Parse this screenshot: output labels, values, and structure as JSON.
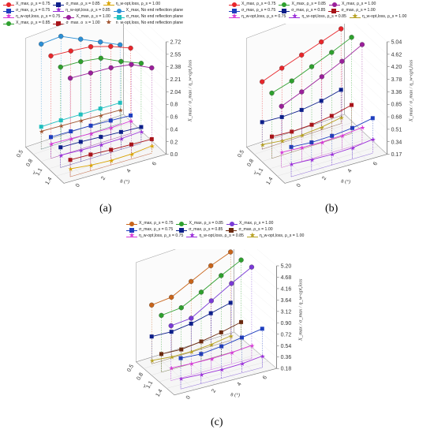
{
  "chart_data": [
    {
      "type": "scatter",
      "panel": "(a)",
      "zlabel": "X_max / σ_max / η_w-opt,loss",
      "xlabel": "λ",
      "ylabel": "θ (°)",
      "x_ticks": [
        "0.5",
        "0.8",
        "1.1",
        "1.4"
      ],
      "y_ticks": [
        "0",
        "2",
        "4",
        "6"
      ],
      "z_ticks": [
        "0.0",
        "0.2",
        "0.4",
        "0.6",
        "0.8",
        "2.04",
        "2.21",
        "2.38",
        "2.55",
        "2.72"
      ],
      "legend": [
        {
          "label": "X_max, ρ_s = 0.75",
          "color": "#e8262b",
          "marker": "dot"
        },
        {
          "label": "σ_max, ρ_s = 0.75",
          "color": "#1f3fbf",
          "marker": "square"
        },
        {
          "label": "η_w-opt,loss, ρ_s = 0.75",
          "color": "#d63ad6",
          "marker": "star"
        },
        {
          "label": "X_max, ρ_s = 0.85",
          "color": "#2ea02e",
          "marker": "dot"
        },
        {
          "label": "σ_max, ρ_s = 0.85",
          "color": "#0d1f8a",
          "marker": "square"
        },
        {
          "label": "η_w-opt,loss, ρ_s = 0.85",
          "color": "#9b30d9",
          "marker": "star"
        },
        {
          "label": "X_max, ρ_s = 1.00",
          "color": "#9b1f9b",
          "marker": "dot"
        },
        {
          "label": "σ_max, ρ_s = 1.00",
          "color": "#a8141a",
          "marker": "square"
        },
        {
          "label": "η_w-opt,loss, ρ_s = 1.00",
          "color": "#d9a300",
          "marker": "star"
        },
        {
          "label": "X_max, No end reflection plane",
          "color": "#2a8fd6",
          "marker": "dot"
        },
        {
          "label": "σ_max, No end reflection plane",
          "color": "#1fbfbf",
          "marker": "square"
        },
        {
          "label": "η_w-opt,loss, No end reflection plane",
          "color": "#a0522d",
          "marker": "star"
        }
      ],
      "series": [
        {
          "name": "X_max, No end reflection plane",
          "color": "#2a8fd6",
          "marker": "dot",
          "values": [
            2.78,
            2.8,
            2.66,
            2.52,
            2.38
          ]
        },
        {
          "name": "X_max, ρ_s = 0.75",
          "color": "#e8262b",
          "marker": "dot",
          "values": [
            2.74,
            2.72,
            2.69,
            2.6,
            2.48
          ]
        },
        {
          "name": "X_max, ρ_s = 0.85",
          "color": "#2ea02e",
          "marker": "dot",
          "values": [
            2.71,
            2.7,
            2.66,
            2.52,
            2.4
          ]
        },
        {
          "name": "X_max, ρ_s = 1.00",
          "color": "#9b1f9b",
          "marker": "dot",
          "values": [
            2.68,
            2.67,
            2.66,
            2.62,
            2.48
          ]
        },
        {
          "name": "σ_max, No end reflection plane",
          "color": "#1fbfbf",
          "marker": "square",
          "values": [
            0.4,
            0.4,
            0.39,
            0.38,
            0.37
          ]
        },
        {
          "name": "σ_max, ρ_s = 0.75",
          "color": "#1f3fbf",
          "marker": "square",
          "values": [
            0.38,
            0.37,
            0.36,
            0.34,
            0.32
          ]
        },
        {
          "name": "σ_max, ρ_s = 0.85",
          "color": "#0d1f8a",
          "marker": "square",
          "values": [
            0.36,
            0.35,
            0.33,
            0.31,
            0.29
          ]
        },
        {
          "name": "σ_max, ρ_s = 1.00",
          "color": "#a8141a",
          "marker": "square",
          "values": [
            0.3,
            0.29,
            0.27,
            0.26,
            0.25
          ]
        },
        {
          "name": "η_w-opt,loss, No end reflection plane",
          "color": "#a0522d",
          "marker": "star",
          "values": [
            0.32,
            0.3,
            0.28,
            0.26,
            0.24
          ]
        },
        {
          "name": "η_w-opt,loss, ρ_s = 0.75",
          "color": "#d63ad6",
          "marker": "star",
          "values": [
            0.26,
            0.24,
            0.22,
            0.21,
            0.22
          ]
        },
        {
          "name": "η_w-opt,loss, ρ_s = 0.85",
          "color": "#9b30d9",
          "marker": "star",
          "values": [
            0.22,
            0.2,
            0.19,
            0.19,
            0.21
          ]
        },
        {
          "name": "η_w-opt,loss, ρ_s = 1.00",
          "color": "#d9a300",
          "marker": "star",
          "values": [
            0.14,
            0.1,
            0.08,
            0.09,
            0.13
          ]
        }
      ]
    },
    {
      "type": "scatter",
      "panel": "(b)",
      "zlabel": "X_max / σ_max / η_w-opt,loss",
      "xlabel": "λ",
      "ylabel": "θ (°)",
      "x_ticks": [
        "0.5",
        "0.8",
        "1.1",
        "1.4"
      ],
      "y_ticks": [
        "0",
        "2",
        "4",
        "6"
      ],
      "z_ticks": [
        "0.17",
        "0.34",
        "0.51",
        "0.68",
        "0.85",
        "3.36",
        "3.78",
        "4.20",
        "4.62",
        "5.04"
      ],
      "legend": [
        {
          "label": "X_max, ρ_s = 0.75",
          "color": "#e8262b",
          "marker": "dot"
        },
        {
          "label": "X_max, ρ_s = 0.85",
          "color": "#2ea02e",
          "marker": "dot"
        },
        {
          "label": "X_max, ρ_s = 1.00",
          "color": "#9b1f9b",
          "marker": "dot"
        },
        {
          "label": "σ_max, ρ_s = 0.75",
          "color": "#1f3fbf",
          "marker": "square"
        },
        {
          "label": "σ_max, ρ_s = 0.85",
          "color": "#0d1f8a",
          "marker": "square"
        },
        {
          "label": "σ_max, ρ_s = 1.00",
          "color": "#a8141a",
          "marker": "square"
        },
        {
          "label": "η_w-opt,loss, ρ_s = 0.75",
          "color": "#d63ad6",
          "marker": "star"
        },
        {
          "label": "η_w-opt,loss, ρ_s = 0.85",
          "color": "#9b30d9",
          "marker": "star"
        },
        {
          "label": "η_w-opt,loss, ρ_s = 1.00",
          "color": "#b5a020",
          "marker": "star"
        }
      ],
      "series": [
        {
          "name": "X_max, ρ_s = 0.75",
          "color": "#e8262b",
          "marker": "dot",
          "values": [
            3.78,
            4.05,
            4.3,
            4.55,
            4.8
          ]
        },
        {
          "name": "X_max, ρ_s = 0.85",
          "color": "#2ea02e",
          "marker": "dot",
          "values": [
            3.7,
            3.92,
            4.22,
            4.52,
            4.85
          ]
        },
        {
          "name": "X_max, ρ_s = 1.00",
          "color": "#9b1f9b",
          "marker": "dot",
          "values": [
            3.55,
            3.86,
            4.2,
            4.55,
            4.95
          ]
        },
        {
          "name": "σ_max, ρ_s = 0.75",
          "color": "#1f3fbf",
          "marker": "square",
          "values": [
            0.62,
            0.6,
            0.61,
            0.64,
            0.7
          ]
        },
        {
          "name": "σ_max, ρ_s = 0.85",
          "color": "#0d1f8a",
          "marker": "square",
          "values": [
            0.58,
            0.56,
            0.57,
            0.61,
            0.68
          ]
        },
        {
          "name": "σ_max, ρ_s = 1.00",
          "color": "#a8141a",
          "marker": "square",
          "values": [
            0.5,
            0.48,
            0.49,
            0.53,
            0.6
          ]
        },
        {
          "name": "η_w-opt,loss, ρ_s = 0.75",
          "color": "#d63ad6",
          "marker": "star",
          "values": [
            0.4,
            0.38,
            0.37,
            0.38,
            0.41
          ]
        },
        {
          "name": "η_w-opt,loss, ρ_s = 0.85",
          "color": "#9b30d9",
          "marker": "star",
          "values": [
            0.36,
            0.34,
            0.33,
            0.34,
            0.38
          ]
        },
        {
          "name": "η_w-opt,loss, ρ_s = 1.00",
          "color": "#b5a020",
          "marker": "star",
          "values": [
            0.24,
            0.2,
            0.19,
            0.21,
            0.26
          ]
        }
      ]
    },
    {
      "type": "scatter",
      "panel": "(c)",
      "zlabel": "X_max / σ_max / η_w-opt,loss",
      "xlabel": "λ",
      "ylabel": "θ (°)",
      "x_ticks": [
        "0.5",
        "0.8",
        "1.1",
        "1.4"
      ],
      "y_ticks": [
        "0",
        "2",
        "4",
        "6"
      ],
      "z_ticks": [
        "0.18",
        "0.36",
        "0.54",
        "0.72",
        "0.90",
        "3.12",
        "3.64",
        "4.16",
        "4.68",
        "5.20"
      ],
      "legend": [
        {
          "label": "X_max, ρ_s = 0.75",
          "color": "#c8641a",
          "marker": "dot"
        },
        {
          "label": "X_max, ρ_s = 0.85",
          "color": "#2ea02e",
          "marker": "dot"
        },
        {
          "label": "X_max, ρ_s = 1.00",
          "color": "#7a3ad6",
          "marker": "dot"
        },
        {
          "label": "σ_max, ρ_s = 0.75",
          "color": "#1f3fbf",
          "marker": "square"
        },
        {
          "label": "σ_max, ρ_s = 0.85",
          "color": "#0d1f8a",
          "marker": "square"
        },
        {
          "label": "σ_max, ρ_s = 1.00",
          "color": "#6b2a10",
          "marker": "square"
        },
        {
          "label": "η_w-opt,loss, ρ_s = 0.75",
          "color": "#d63ad6",
          "marker": "star"
        },
        {
          "label": "η_w-opt,loss, ρ_s = 0.85",
          "color": "#9b30d9",
          "marker": "star"
        },
        {
          "label": "η_w-opt,loss, ρ_s = 1.00",
          "color": "#b5a020",
          "marker": "star"
        }
      ],
      "series": [
        {
          "name": "X_max, ρ_s = 0.75",
          "color": "#c8641a",
          "marker": "dot",
          "values": [
            3.5,
            3.6,
            4.1,
            4.6,
            5.0
          ]
        },
        {
          "name": "X_max, ρ_s = 0.85",
          "color": "#2ea02e",
          "marker": "dot",
          "values": [
            3.4,
            3.5,
            4.0,
            4.55,
            5.05
          ]
        },
        {
          "name": "X_max, ρ_s = 1.00",
          "color": "#7a3ad6",
          "marker": "dot",
          "values": [
            3.3,
            3.4,
            4.0,
            4.6,
            5.15
          ]
        },
        {
          "name": "σ_max, ρ_s = 0.75",
          "color": "#1f3fbf",
          "marker": "square",
          "values": [
            0.72,
            0.7,
            0.74,
            0.8,
            0.86
          ]
        },
        {
          "name": "σ_max, ρ_s = 0.85",
          "color": "#0d1f8a",
          "marker": "square",
          "values": [
            0.66,
            0.64,
            0.68,
            0.76,
            0.84
          ]
        },
        {
          "name": "σ_max, ρ_s = 1.00",
          "color": "#6b2a10",
          "marker": "square",
          "values": [
            0.5,
            0.48,
            0.52,
            0.58,
            0.66
          ]
        },
        {
          "name": "η_w-opt,loss, ρ_s = 0.75",
          "color": "#d63ad6",
          "marker": "star",
          "values": [
            0.4,
            0.38,
            0.37,
            0.38,
            0.41
          ]
        },
        {
          "name": "η_w-opt,loss, ρ_s = 0.85",
          "color": "#9b30d9",
          "marker": "star",
          "values": [
            0.36,
            0.34,
            0.33,
            0.34,
            0.38
          ]
        },
        {
          "name": "η_w-opt,loss, ρ_s = 1.00",
          "color": "#b5a020",
          "marker": "star",
          "values": [
            0.24,
            0.2,
            0.19,
            0.21,
            0.26
          ]
        }
      ]
    }
  ]
}
